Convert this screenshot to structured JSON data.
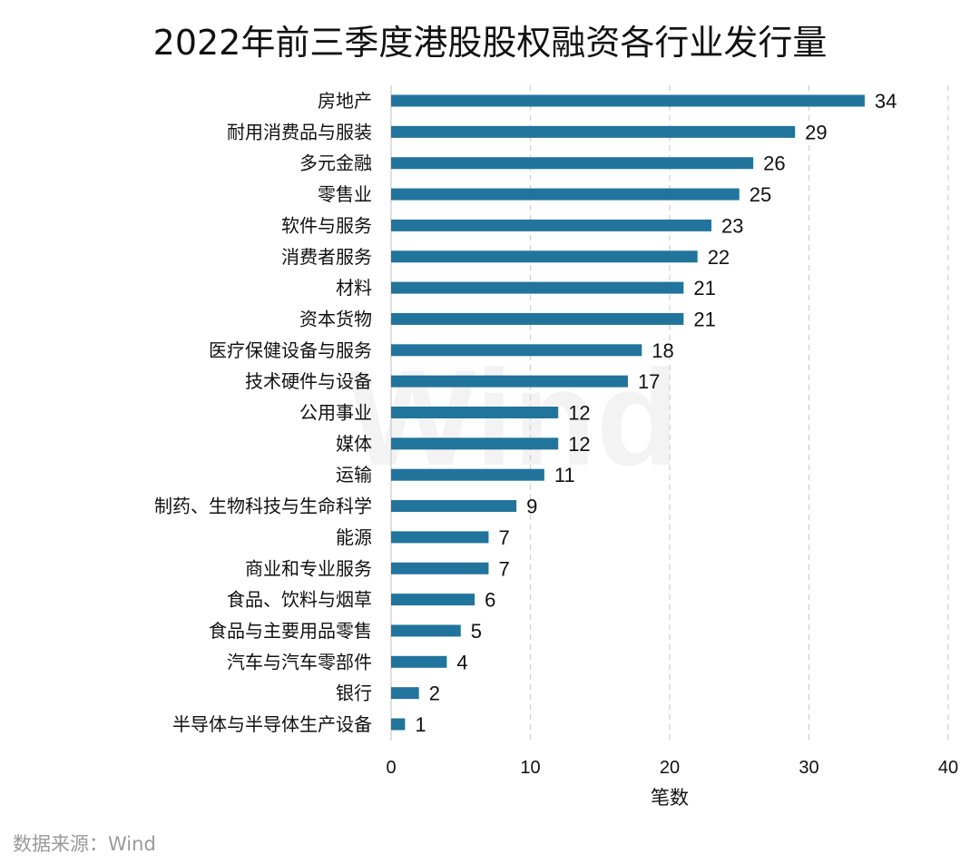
{
  "chart_data": {
    "type": "bar",
    "orientation": "horizontal",
    "title": "2022年前三季度港股股权融资各行业发行量",
    "categories": [
      "房地产",
      "耐用消费品与服装",
      "多元金融",
      "零售业",
      "软件与服务",
      "消费者服务",
      "材料",
      "资本货物",
      "医疗保健设备与服务",
      "技术硬件与设备",
      "公用事业",
      "媒体",
      "运输",
      "制药、生物科技与生命科学",
      "能源",
      "商业和专业服务",
      "食品、饮料与烟草",
      "食品与主要用品零售",
      "汽车与汽车零部件",
      "银行",
      "半导体与半导体生产设备"
    ],
    "values": [
      34,
      29,
      26,
      25,
      23,
      22,
      21,
      21,
      18,
      17,
      12,
      12,
      11,
      9,
      7,
      7,
      6,
      5,
      4,
      2,
      1
    ],
    "xlabel": "笔数",
    "ylabel": "",
    "xlim": [
      0,
      40
    ],
    "xticks": [
      0,
      10,
      20,
      30,
      40
    ],
    "grid": true,
    "data_labels": true,
    "bar_color": "#21749c",
    "grid_color": "#cfcfcf"
  },
  "source": "数据来源：Wind",
  "watermark": "Wind"
}
